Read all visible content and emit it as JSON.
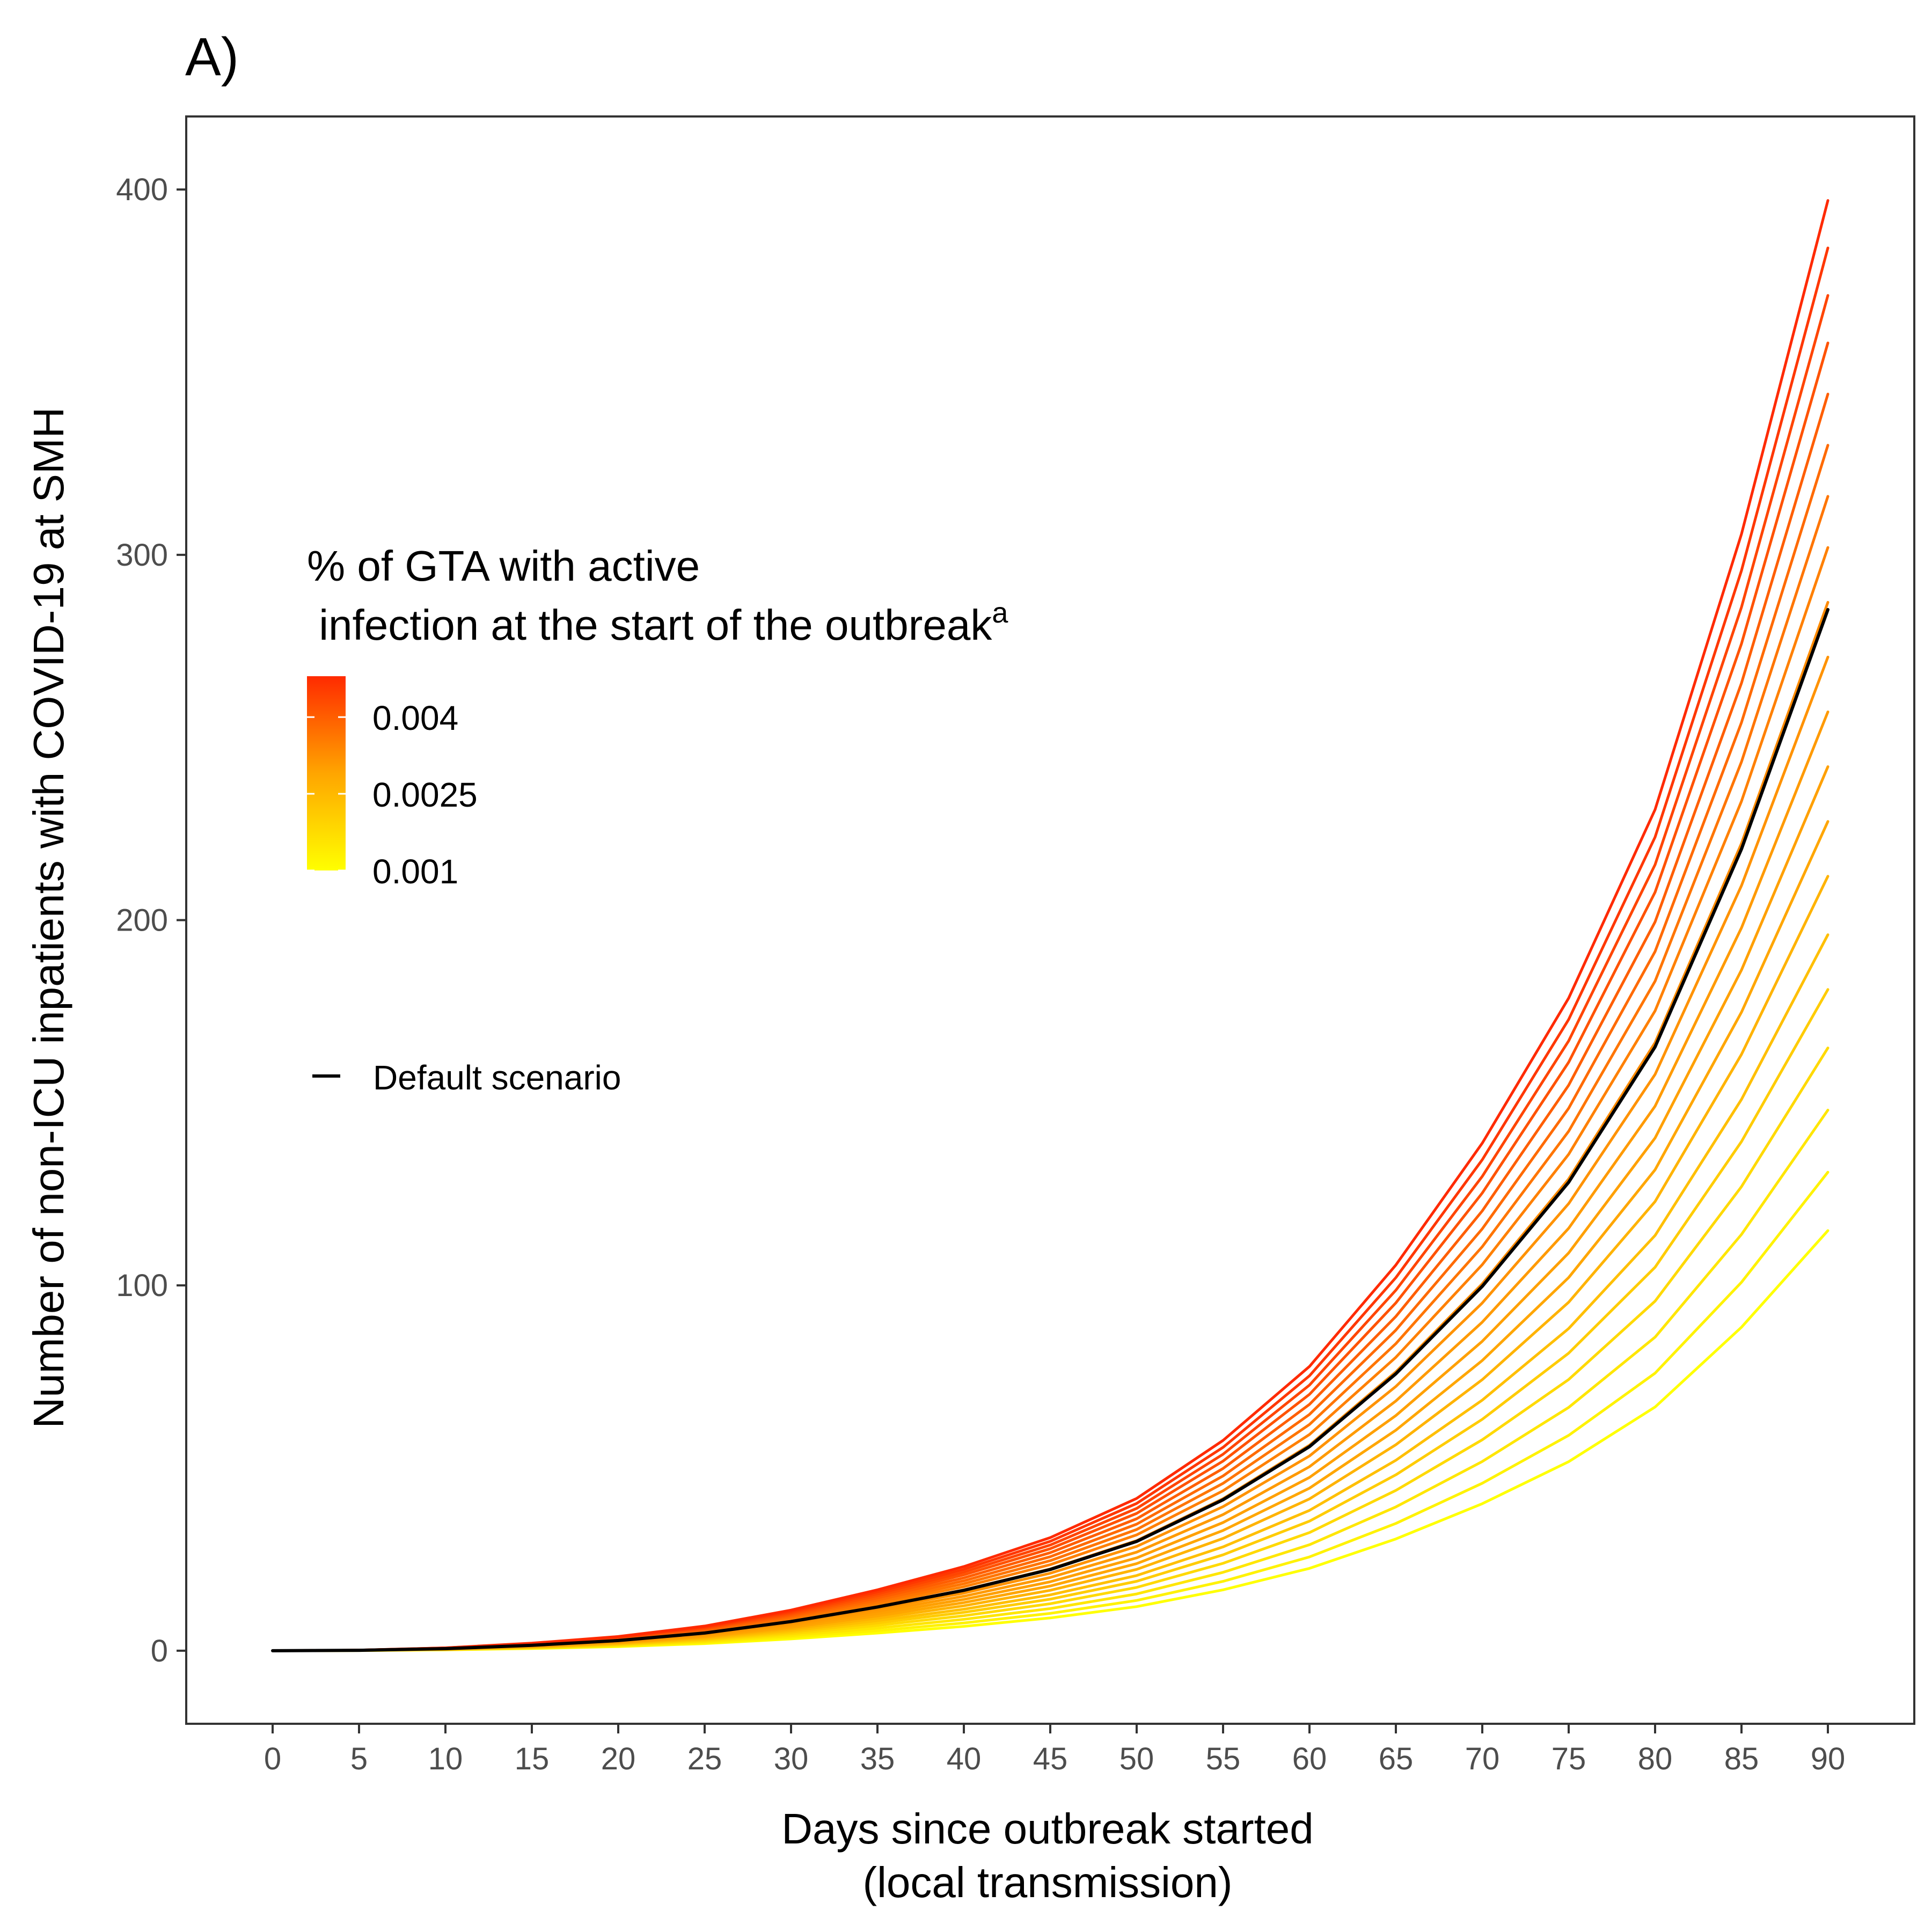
{
  "chart_data": {
    "type": "line",
    "panel_label": "A)",
    "xlabel_line1": "Days since outbreak started",
    "xlabel_line2": "(local transmission)",
    "ylabel": "Number of non-ICU inpatients with COVID-19 at SMH",
    "xlim": [
      -5,
      95
    ],
    "ylim": [
      -20,
      420
    ],
    "x_ticks": [
      0,
      5,
      10,
      15,
      20,
      25,
      30,
      35,
      40,
      45,
      50,
      55,
      60,
      65,
      70,
      75,
      80,
      85,
      90
    ],
    "y_ticks": [
      0,
      100,
      200,
      300,
      400
    ],
    "grid": false,
    "legend": {
      "position": "inside-left",
      "title_line1": "% of GTA with active",
      "title_line2": " infection at the start of the outbreak",
      "title_superscript": "a",
      "colorbar_labels": [
        "0.004",
        "0.0025",
        "0.001"
      ],
      "colorbar_values": [
        0.004,
        0.0025,
        0.001
      ],
      "colorbar_range": [
        0.001,
        0.0048
      ],
      "colorbar_colors": {
        "low": "#ffff00",
        "mid": "#ffa500",
        "high": "#ff2a00"
      },
      "default_label": "Default scenario",
      "default_color": "#000000"
    },
    "series_x": [
      0,
      5,
      10,
      15,
      20,
      25,
      30,
      35,
      40,
      45,
      50,
      55,
      60,
      65,
      70,
      75,
      80,
      85,
      90
    ],
    "shape": [
      0,
      0.0004,
      0.002,
      0.0052,
      0.0098,
      0.017,
      0.028,
      0.042,
      0.058,
      0.078,
      0.105,
      0.145,
      0.196,
      0.266,
      0.35,
      0.45,
      0.58,
      0.77,
      1.0
    ],
    "series": [
      {
        "infection_pct": 0.001,
        "color": "#ffff00",
        "end_value": 115
      },
      {
        "infection_pct": 0.0012,
        "color": "#fff200",
        "end_value": 131
      },
      {
        "infection_pct": 0.0014,
        "color": "#ffe600",
        "end_value": 148
      },
      {
        "infection_pct": 0.0016,
        "color": "#ffd900",
        "end_value": 165
      },
      {
        "infection_pct": 0.0018,
        "color": "#ffcc00",
        "end_value": 181
      },
      {
        "infection_pct": 0.002,
        "color": "#ffbf00",
        "end_value": 196
      },
      {
        "infection_pct": 0.0022,
        "color": "#ffb300",
        "end_value": 212
      },
      {
        "infection_pct": 0.0024,
        "color": "#ffa600",
        "end_value": 227
      },
      {
        "infection_pct": 0.0026,
        "color": "#ffa000",
        "end_value": 242
      },
      {
        "infection_pct": 0.0028,
        "color": "#ff9a00",
        "end_value": 257
      },
      {
        "infection_pct": 0.003,
        "color": "#ff9200",
        "end_value": 272
      },
      {
        "infection_pct": 0.0032,
        "color": "#ff8a00",
        "end_value": 287
      },
      {
        "infection_pct": 0.0034,
        "color": "#ff8000",
        "end_value": 302
      },
      {
        "infection_pct": 0.0036,
        "color": "#ff7500",
        "end_value": 316
      },
      {
        "infection_pct": 0.0038,
        "color": "#ff6a00",
        "end_value": 330
      },
      {
        "infection_pct": 0.004,
        "color": "#ff5e00",
        "end_value": 344
      },
      {
        "infection_pct": 0.0042,
        "color": "#ff5200",
        "end_value": 358
      },
      {
        "infection_pct": 0.0044,
        "color": "#ff4500",
        "end_value": 371
      },
      {
        "infection_pct": 0.0046,
        "color": "#ff3700",
        "end_value": 384
      },
      {
        "infection_pct": 0.0048,
        "color": "#ff2a00",
        "end_value": 397
      }
    ],
    "default_series": {
      "color": "#000000",
      "end_value": 285
    }
  }
}
